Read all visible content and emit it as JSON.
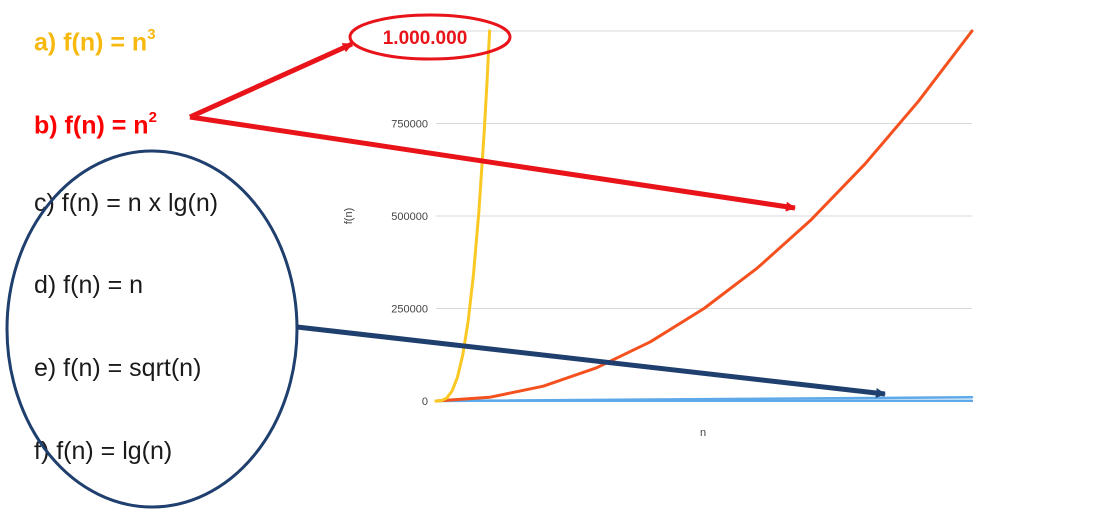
{
  "functions": [
    {
      "prefix": "a) f(n) = n",
      "sup": "3",
      "color": "#F7B90F",
      "bold": true
    },
    {
      "prefix": "b) f(n) = n",
      "sup": "2",
      "color": "#FF0000",
      "bold": true
    },
    {
      "prefix": "c) f(n) = n x lg(n)",
      "sup": "",
      "color": "#1a1a1a",
      "bold": false
    },
    {
      "prefix": "d) f(n) = n",
      "sup": "",
      "color": "#1a1a1a",
      "bold": false
    },
    {
      "prefix": "e) f(n) = sqrt(n)",
      "sup": "",
      "color": "#1a1a1a",
      "bold": false
    },
    {
      "prefix": "f) f(n) = lg(n)",
      "sup": "",
      "color": "#1a1a1a",
      "bold": false
    }
  ],
  "highlight_label": "1.000.000",
  "colors": {
    "red_annotation": "#E8141A",
    "blue_annotation": "#1F3F6E",
    "cubic": "#F9C823",
    "quadratic": "#F4511E",
    "linear_family": "#5DA9E9",
    "log": "#8B1A1A",
    "grid": "#D9D9D9"
  },
  "chart_data": {
    "type": "line",
    "title": "",
    "xlabel": "n",
    "ylabel": "f(n)",
    "xlim": [
      0,
      1000
    ],
    "ylim": [
      0,
      1000000
    ],
    "yticks": [
      "0",
      "250000",
      "500000",
      "750000"
    ],
    "grid": true,
    "series": [
      {
        "key": "n3",
        "color": "#F9C823",
        "x": [
          0,
          10,
          20,
          30,
          40,
          50,
          60,
          70,
          80,
          90,
          95,
          100
        ],
        "y": [
          0,
          1000,
          8000,
          27000,
          64000,
          125000,
          216000,
          343000,
          512000,
          729000,
          857375,
          1000000
        ]
      },
      {
        "key": "n2",
        "color": "#F4511E",
        "x": [
          0,
          100,
          200,
          300,
          400,
          500,
          600,
          700,
          800,
          900,
          1000
        ],
        "y": [
          0,
          10000,
          40000,
          90000,
          160000,
          250000,
          360000,
          490000,
          640000,
          810000,
          1000000
        ]
      },
      {
        "key": "nlgn",
        "color": "#5DA9E9",
        "x": [
          0,
          1000
        ],
        "y": [
          0,
          9966
        ]
      },
      {
        "key": "n",
        "color": "#5DA9E9",
        "x": [
          0,
          1000
        ],
        "y": [
          0,
          1000
        ]
      },
      {
        "key": "sqrt",
        "color": "#5DA9E9",
        "x": [
          0,
          1000
        ],
        "y": [
          0,
          32
        ]
      },
      {
        "key": "lg",
        "color": "#8B1A1A",
        "x": [
          0,
          1000
        ],
        "y": [
          0,
          10
        ]
      }
    ]
  }
}
